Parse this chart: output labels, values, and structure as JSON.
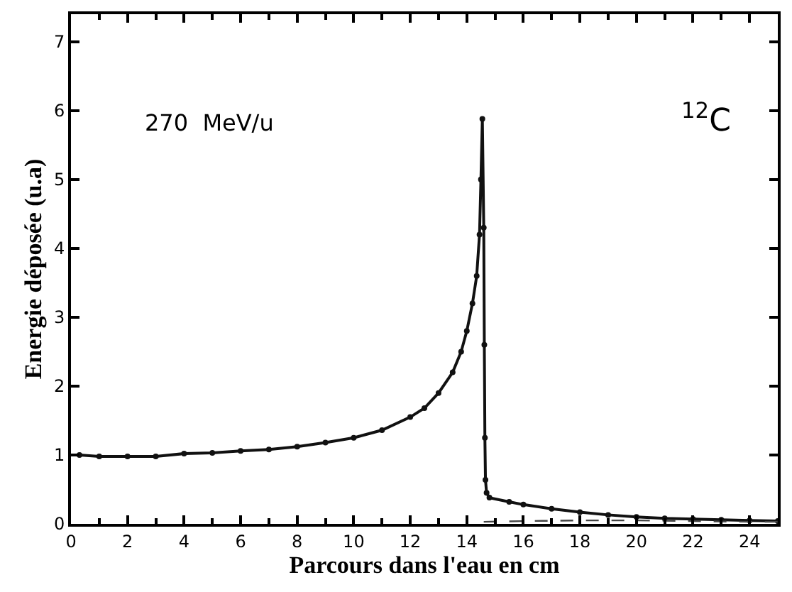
{
  "chart_data": {
    "type": "line",
    "xlabel": "Parcours dans l'eau en cm",
    "ylabel": "Energie déposée (u.a)",
    "xlim": [
      0,
      25
    ],
    "ylim": [
      0,
      7.4
    ],
    "xticks": [
      0,
      2,
      4,
      6,
      8,
      10,
      12,
      14,
      16,
      18,
      20,
      22,
      24
    ],
    "yticks": [
      0,
      1,
      2,
      3,
      4,
      5,
      6,
      7
    ],
    "legend": false,
    "marker": "circle",
    "annotations": [
      "270  MeV/u",
      "$^{12}$C"
    ],
    "series": [
      {
        "color": "#111111",
        "line_style": "solid",
        "x": [
          0.3,
          1,
          2,
          3,
          4,
          5,
          6,
          7,
          8,
          9,
          10,
          11,
          12,
          12.5,
          13,
          13.5,
          13.8,
          14,
          14.2,
          14.35,
          14.45,
          14.5,
          14.55,
          14.6,
          14.62,
          14.64,
          14.66,
          14.7,
          14.8,
          15.5,
          16,
          17,
          18,
          19,
          20,
          21,
          22,
          23,
          24,
          25
        ],
        "values": [
          1.0,
          0.98,
          0.98,
          0.98,
          1.02,
          1.03,
          1.06,
          1.08,
          1.12,
          1.18,
          1.25,
          1.36,
          1.55,
          1.68,
          1.9,
          2.2,
          2.5,
          2.8,
          3.2,
          3.6,
          4.2,
          5.0,
          5.88,
          4.3,
          2.6,
          1.25,
          0.64,
          0.45,
          0.38,
          0.32,
          0.28,
          0.22,
          0.17,
          0.13,
          0.1,
          0.08,
          0.07,
          0.06,
          0.05,
          0.04
        ]
      },
      {
        "color": "#444444",
        "line_style": "dashed",
        "marker": "none",
        "x": [
          14.6,
          16,
          18,
          20,
          22,
          24,
          25
        ],
        "values": [
          0.03,
          0.04,
          0.05,
          0.05,
          0.04,
          0.03,
          0.03
        ]
      }
    ]
  }
}
